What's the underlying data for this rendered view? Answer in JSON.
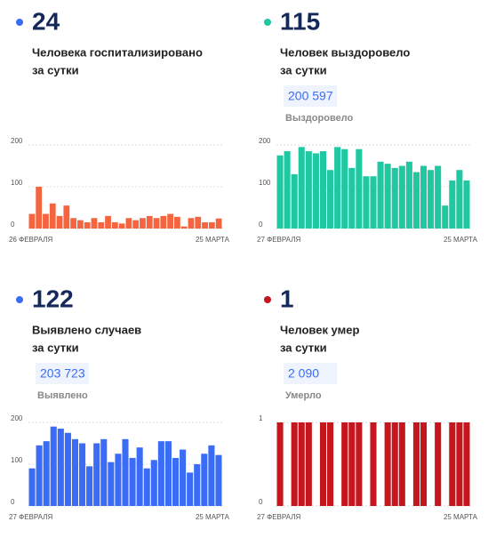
{
  "chart_data": [
    {
      "type": "bar",
      "headline": 24,
      "marker_color": "#3b6cf5",
      "subtitle": [
        "Человека госпитализировано",
        "за сутки"
      ],
      "color": "#f4653f",
      "ylim": [
        0,
        200
      ],
      "yticks": [
        0,
        100,
        200
      ],
      "grid": true,
      "categories": [
        "26 ФЕВРАЛЯ",
        null,
        null,
        null,
        null,
        null,
        null,
        null,
        null,
        null,
        null,
        null,
        null,
        null,
        null,
        null,
        null,
        null,
        null,
        null,
        null,
        null,
        null,
        null,
        null,
        null,
        null,
        "25 МАРТА"
      ],
      "values": [
        35,
        100,
        35,
        60,
        30,
        55,
        25,
        20,
        15,
        25,
        15,
        30,
        15,
        12,
        25,
        20,
        25,
        30,
        25,
        30,
        35,
        28,
        5,
        25,
        28,
        15,
        15,
        24
      ]
    },
    {
      "type": "bar",
      "headline": 115,
      "marker_color": "#1fc8a0",
      "subtitle": [
        "Человек выздоровело",
        "за сутки"
      ],
      "total": "200 597",
      "total_label": "Выздоровело",
      "color": "#1fc8a0",
      "ylim": [
        0,
        200
      ],
      "yticks": [
        0,
        100,
        200
      ],
      "grid": true,
      "categories": [
        "27 ФЕВРАЛЯ",
        null,
        null,
        null,
        null,
        null,
        null,
        null,
        null,
        null,
        null,
        null,
        null,
        null,
        null,
        null,
        null,
        null,
        null,
        null,
        null,
        null,
        null,
        null,
        null,
        null,
        "25 МАРТА"
      ],
      "values": [
        175,
        185,
        130,
        195,
        185,
        180,
        185,
        140,
        195,
        190,
        145,
        190,
        125,
        125,
        160,
        155,
        145,
        150,
        160,
        135,
        150,
        140,
        150,
        55,
        115,
        140,
        115
      ]
    },
    {
      "type": "bar",
      "headline": 122,
      "marker_color": "#3b6cf5",
      "subtitle": [
        "Выявлено случаев",
        "за сутки"
      ],
      "total": "203 723",
      "total_label": "Выявлено",
      "color": "#3b6cf5",
      "ylim": [
        0,
        200
      ],
      "yticks": [
        0,
        100,
        200
      ],
      "grid": true,
      "categories": [
        "27 ФЕВРАЛЯ",
        null,
        null,
        null,
        null,
        null,
        null,
        null,
        null,
        null,
        null,
        null,
        null,
        null,
        null,
        null,
        null,
        null,
        null,
        null,
        null,
        null,
        null,
        null,
        null,
        null,
        "25 МАРТА"
      ],
      "values": [
        90,
        145,
        155,
        190,
        185,
        175,
        160,
        150,
        95,
        150,
        160,
        105,
        125,
        160,
        115,
        140,
        90,
        110,
        155,
        155,
        115,
        135,
        80,
        100,
        125,
        145,
        122
      ]
    },
    {
      "type": "bar",
      "headline": 1,
      "marker_color": "#c4161c",
      "subtitle": [
        "Человек умер",
        "за сутки"
      ],
      "total": "2 090",
      "total_label": "Умерло",
      "color": "#c4161c",
      "ylim": [
        0,
        1
      ],
      "yticks": [
        0,
        1
      ],
      "grid": true,
      "categories": [
        "27 ФЕВРАЛЯ",
        null,
        null,
        null,
        null,
        null,
        null,
        null,
        null,
        null,
        null,
        null,
        null,
        null,
        null,
        null,
        null,
        null,
        null,
        null,
        null,
        null,
        null,
        null,
        null,
        null,
        "25 МАРТА"
      ],
      "values": [
        1,
        0,
        1,
        1,
        1,
        0,
        1,
        1,
        0,
        1,
        1,
        1,
        0,
        1,
        0,
        1,
        1,
        1,
        0,
        1,
        1,
        0,
        1,
        0,
        1,
        1,
        1
      ]
    }
  ]
}
